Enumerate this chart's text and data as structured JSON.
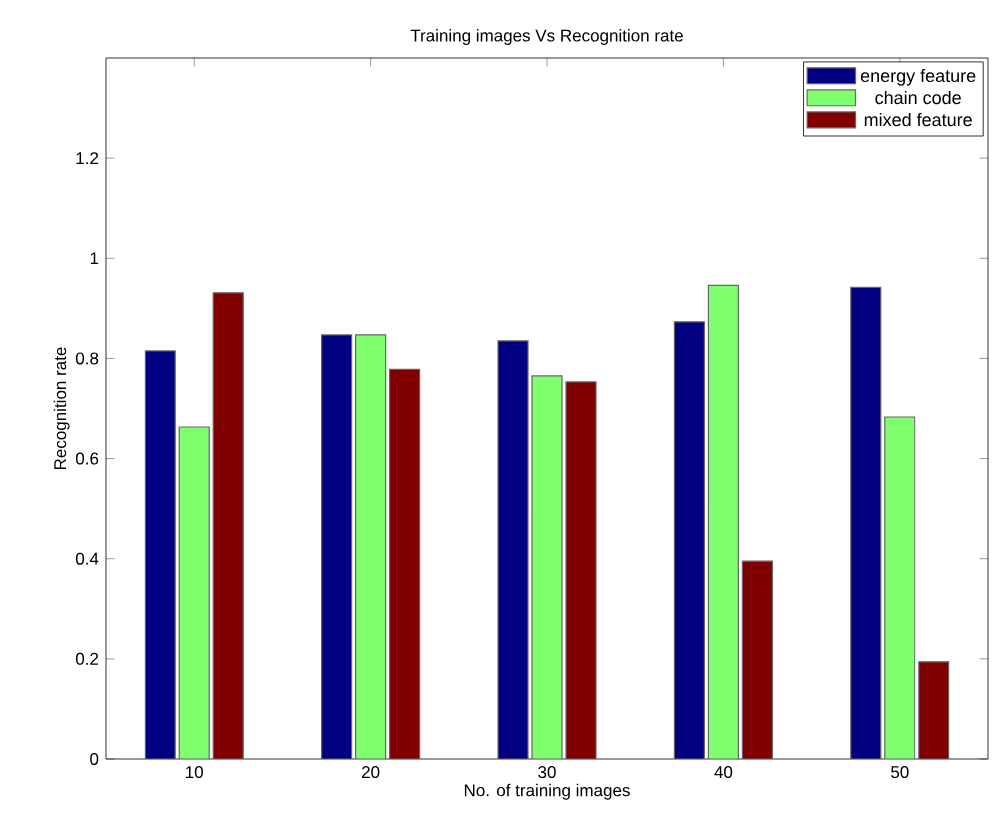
{
  "chart_data": {
    "type": "bar",
    "title": "Training images Vs Recognition rate",
    "xlabel": "No. of training images",
    "ylabel": "Recognition rate",
    "categories": [
      "10",
      "20",
      "30",
      "40",
      "50"
    ],
    "series": [
      {
        "name": "energy feature",
        "color": "#000080",
        "values": [
          0.815,
          0.847,
          0.835,
          0.873,
          0.942
        ]
      },
      {
        "name": "chain code",
        "color": "#80ff6e",
        "values": [
          0.663,
          0.847,
          0.765,
          0.946,
          0.683
        ]
      },
      {
        "name": "mixed feature",
        "color": "#800000",
        "values": [
          0.931,
          0.778,
          0.753,
          0.395,
          0.194
        ]
      }
    ],
    "ylim": [
      0,
      1.4
    ],
    "yticks": [
      0,
      0.2,
      0.4,
      0.6,
      0.8,
      1,
      1.2
    ],
    "grid": false,
    "legend": "top right"
  }
}
